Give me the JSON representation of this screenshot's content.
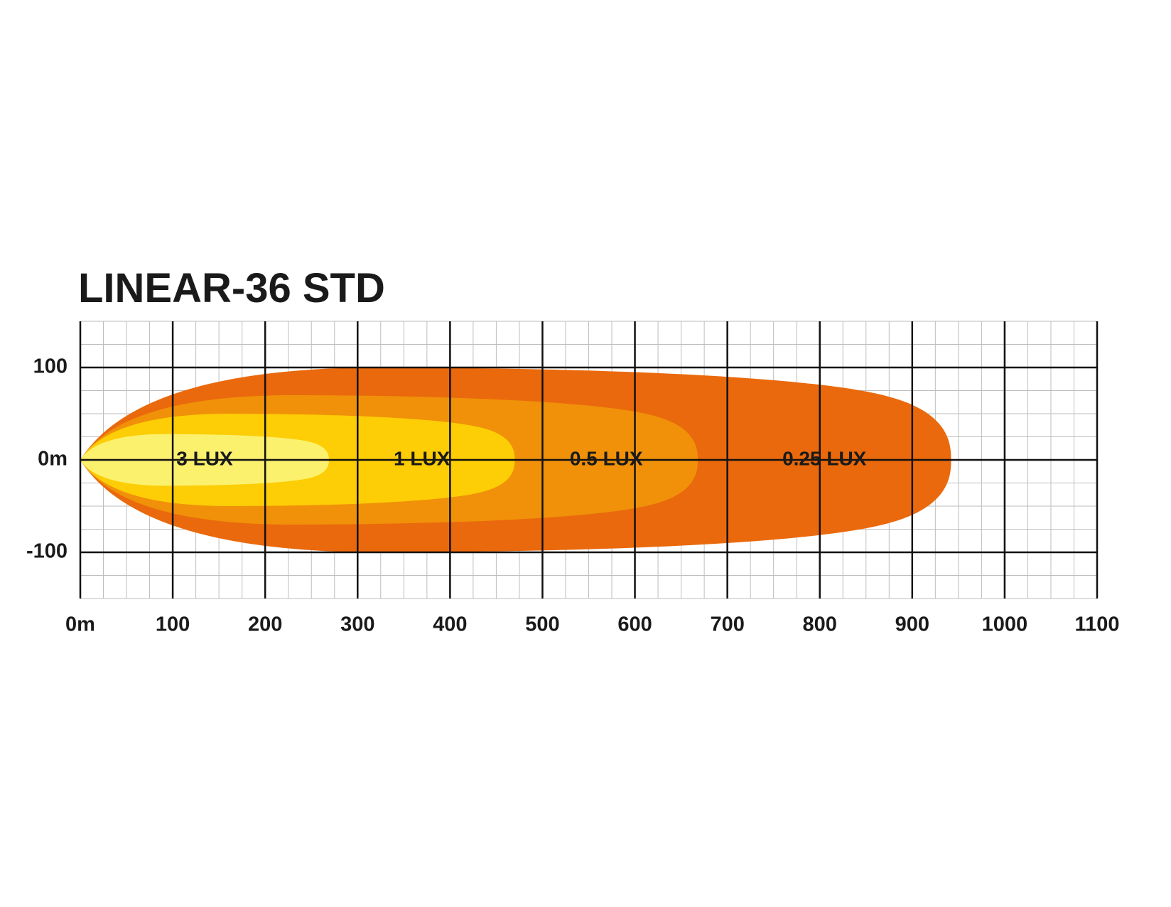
{
  "chart_data": {
    "type": "beam",
    "title": "LINEAR-36 STD",
    "xlim": [
      0,
      1100
    ],
    "ylim": [
      -150,
      150
    ],
    "xticks": [
      {
        "value": 0,
        "label": "0m"
      },
      100,
      200,
      300,
      400,
      500,
      600,
      700,
      800,
      900,
      1000,
      1100
    ],
    "yticks": [
      100,
      {
        "value": 0,
        "label": "0m"
      },
      -100
    ],
    "grid": true,
    "series": [
      {
        "name": "0.25 LUX",
        "color": "#ea690c",
        "reach": 942,
        "half_width": 100
      },
      {
        "name": "0.5 LUX",
        "color": "#f09109",
        "reach": 668,
        "half_width": 70
      },
      {
        "name": "1 LUX",
        "color": "#fdcd05",
        "reach": 470,
        "half_width": 50
      },
      {
        "name": "3 LUX",
        "color": "#fbf16d",
        "reach": 269,
        "half_width": 28
      }
    ]
  }
}
